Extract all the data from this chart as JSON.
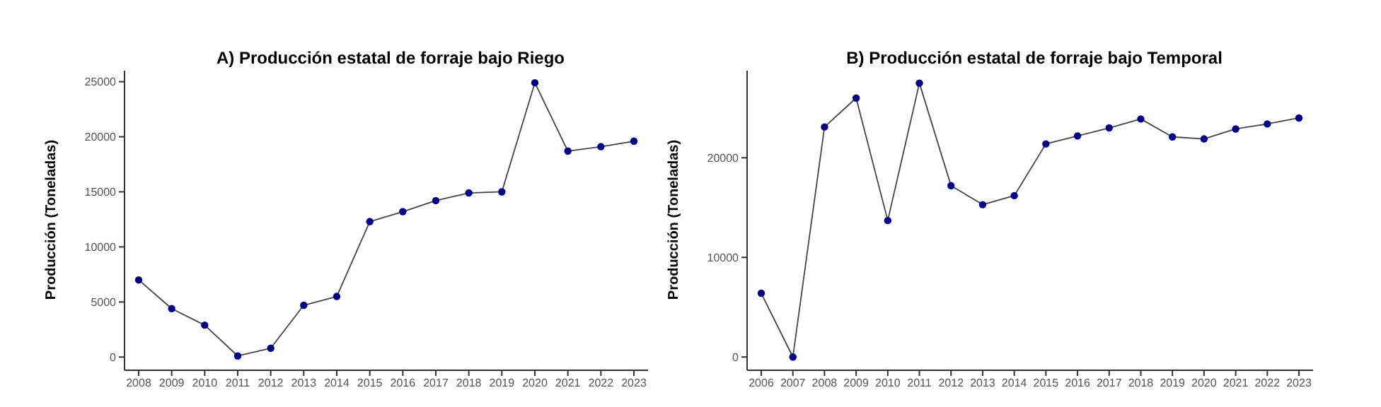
{
  "chart_data": [
    {
      "type": "line",
      "title": "A) Producción estatal de forraje bajo Riego",
      "ylabel": "Producción (Toneladas)",
      "categories": [
        "2008",
        "2009",
        "2010",
        "2011",
        "2012",
        "2013",
        "2014",
        "2015",
        "2016",
        "2017",
        "2018",
        "2019",
        "2020",
        "2021",
        "2022",
        "2023"
      ],
      "series": [
        {
          "color": "#00008b",
          "values": [
            7000,
            4400,
            2900,
            100,
            800,
            4700,
            5500,
            12300,
            13200,
            14200,
            14900,
            15000,
            24900,
            18700,
            19100,
            19600
          ]
        }
      ],
      "ylim": [
        -1200,
        26000
      ],
      "yticks": [
        0,
        5000,
        10000,
        15000,
        20000,
        25000
      ],
      "grid": false,
      "legend": false,
      "marker": "circle",
      "line_style": "solid"
    },
    {
      "type": "line",
      "title": "B) Producción estatal de forraje bajo Temporal",
      "ylabel": "Producción (Toneladas)",
      "categories": [
        "2006",
        "2007",
        "2008",
        "2009",
        "2010",
        "2011",
        "2012",
        "2013",
        "2014",
        "2015",
        "2016",
        "2017",
        "2018",
        "2019",
        "2020",
        "2021",
        "2022",
        "2023"
      ],
      "series": [
        {
          "color": "#00008b",
          "values": [
            6400,
            0,
            23100,
            26000,
            13700,
            27500,
            17200,
            15300,
            16200,
            21400,
            22200,
            23000,
            23900,
            22100,
            21900,
            22900,
            23400,
            24000
          ]
        }
      ],
      "ylim": [
        -1330,
        28750
      ],
      "yticks": [
        0,
        10000,
        20000
      ],
      "grid": false,
      "legend": false,
      "marker": "circle",
      "line_style": "solid"
    }
  ]
}
